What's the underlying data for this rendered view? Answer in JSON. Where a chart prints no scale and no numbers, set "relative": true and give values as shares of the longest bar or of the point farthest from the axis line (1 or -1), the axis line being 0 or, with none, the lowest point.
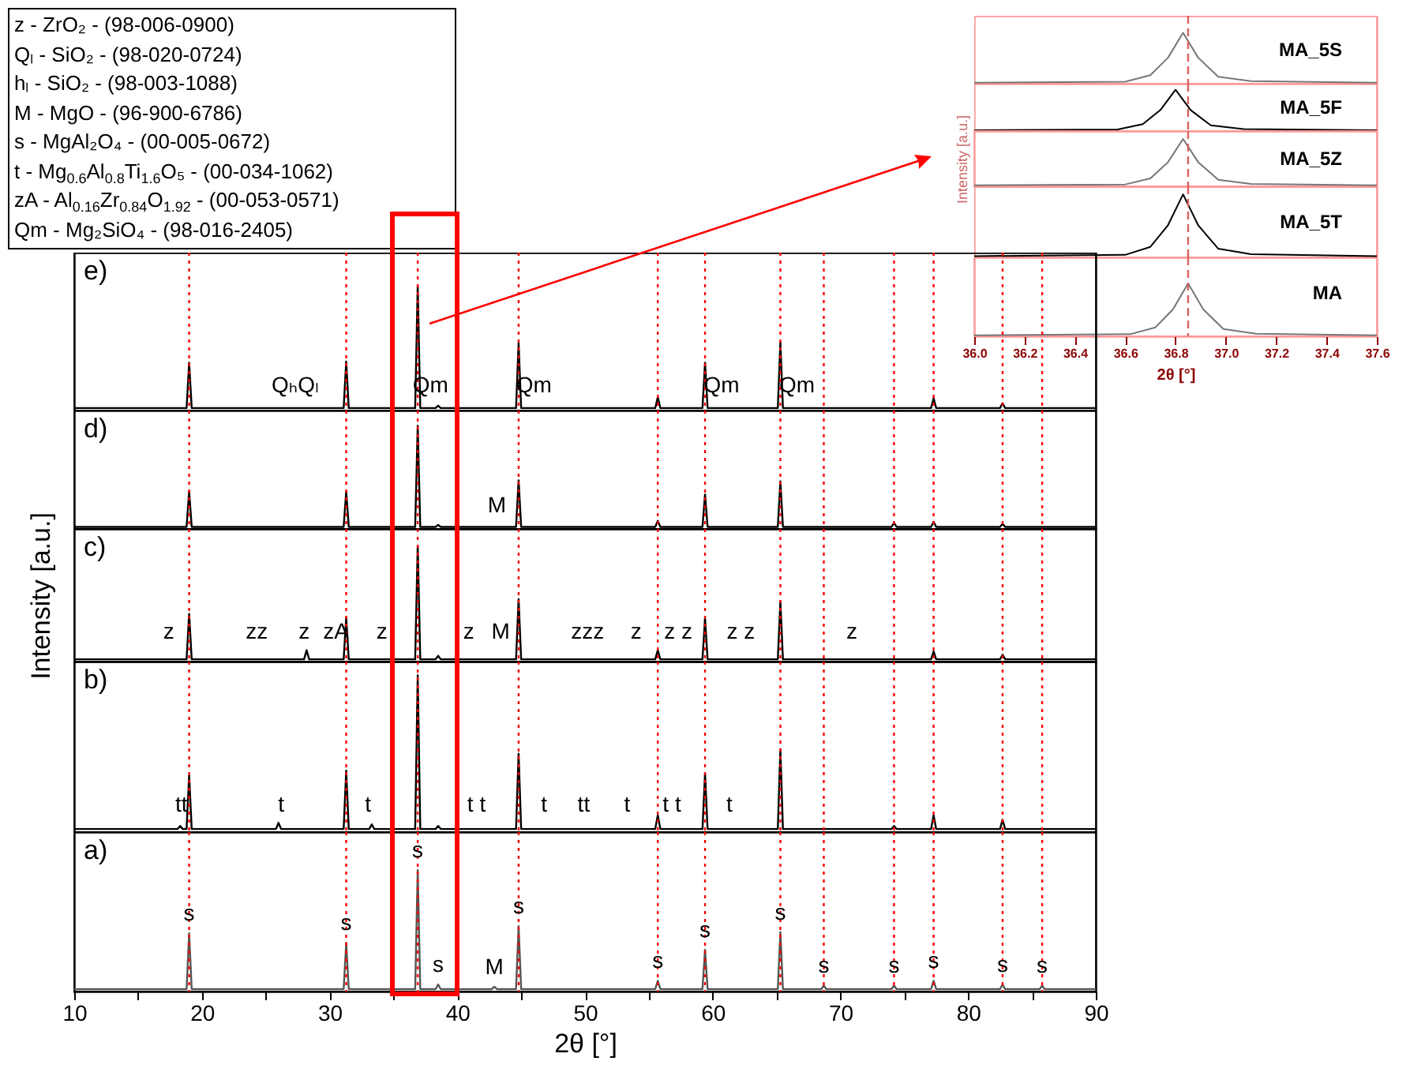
{
  "chart_data": [
    {
      "type": "other",
      "annotations": [
        "z - ZrO₂ - (98-006-0900)",
        "Qₗ - SiO₂ - (98-020-0724)",
        "hₗ - SiO₂ - (98-003-1088)",
        "M - MgO - (96-900-6786)",
        "s - MgAl₂O₄ - (00-005-0672)",
        "t - Mg$_{0.6}$Al$_{0.8}$Ti$_{1.6}$O₅ - (00-034-1062)",
        "zA - Al$_{0.16}$Zr$_{0.84}$O$_{1.92}$ - (00-053-0571)",
        "Qm - Mg₂SiO₄ - (98-016-2405)"
      ]
    },
    {
      "type": "line",
      "relative": true,
      "xlim": [
        36.0,
        37.6
      ],
      "tick_labels": false,
      "ref_lines": [
        {
          "axis": "x",
          "value": 36.85,
          "color": "#d96060",
          "line_style": "dashed"
        }
      ],
      "series": [
        {
          "name": "MA_5S",
          "color": "#777777",
          "x": [
            36.0,
            36.6,
            36.7,
            36.77,
            36.83,
            36.89,
            36.97,
            37.1,
            37.6
          ],
          "values": [
            0,
            0.02,
            0.15,
            0.5,
            1,
            0.5,
            0.12,
            0.03,
            0
          ]
        }
      ]
    },
    {
      "type": "line",
      "relative": true,
      "xlim": [
        36.0,
        37.6
      ],
      "tick_labels": false,
      "ref_lines": [
        {
          "axis": "x",
          "value": 36.85,
          "color": "#d96060",
          "line_style": "dashed"
        }
      ],
      "series": [
        {
          "name": "MA_5F",
          "color": "#000000",
          "x": [
            36.0,
            36.57,
            36.67,
            36.74,
            36.8,
            36.86,
            36.94,
            37.07,
            37.6
          ],
          "values": [
            0,
            0.02,
            0.15,
            0.5,
            1,
            0.5,
            0.12,
            0.03,
            0
          ]
        }
      ]
    },
    {
      "type": "line",
      "relative": true,
      "xlim": [
        36.0,
        37.6
      ],
      "tick_labels": false,
      "ylabel": "Intensity [a.u.]",
      "ref_lines": [
        {
          "axis": "x",
          "value": 36.85,
          "color": "#d96060",
          "line_style": "dashed"
        }
      ],
      "series": [
        {
          "name": "MA_5Z",
          "color": "#777777",
          "x": [
            36.0,
            36.6,
            36.7,
            36.77,
            36.83,
            36.89,
            36.97,
            37.1,
            37.6
          ],
          "values": [
            0,
            0.02,
            0.15,
            0.5,
            1,
            0.5,
            0.12,
            0.03,
            0
          ]
        }
      ]
    },
    {
      "type": "line",
      "relative": true,
      "xlim": [
        36.0,
        37.6
      ],
      "tick_labels": false,
      "ref_lines": [
        {
          "axis": "x",
          "value": 36.85,
          "color": "#d96060",
          "line_style": "dashed"
        }
      ],
      "series": [
        {
          "name": "MA_5T",
          "color": "#000000",
          "x": [
            36.0,
            36.6,
            36.7,
            36.77,
            36.83,
            36.89,
            36.97,
            37.1,
            37.6
          ],
          "values": [
            0,
            0.02,
            0.15,
            0.5,
            1,
            0.5,
            0.12,
            0.03,
            0
          ]
        }
      ]
    },
    {
      "type": "line",
      "relative": true,
      "xlim": [
        36.0,
        37.6
      ],
      "tick_labels": "x",
      "xlabel": "2θ [°]",
      "xticks": [
        {
          "value": 36.0,
          "label": "36.0"
        },
        {
          "value": 36.2,
          "label": "36.2"
        },
        {
          "value": 36.4,
          "label": "36.4"
        },
        {
          "value": 36.6,
          "label": "36.6"
        },
        {
          "value": 36.8,
          "label": "36.8"
        },
        {
          "value": 37.0,
          "label": "37.0"
        },
        {
          "value": 37.2,
          "label": "37.2"
        },
        {
          "value": 37.4,
          "label": "37.4"
        },
        {
          "value": 37.6,
          "label": "37.6"
        }
      ],
      "ref_lines": [
        {
          "axis": "x",
          "value": 36.85,
          "color": "#d96060",
          "line_style": "dashed"
        }
      ],
      "series": [
        {
          "name": "MA",
          "color": "#777777",
          "x": [
            36.0,
            36.62,
            36.72,
            36.79,
            36.85,
            36.91,
            36.99,
            37.12,
            37.6
          ],
          "values": [
            0,
            0.02,
            0.15,
            0.5,
            1,
            0.5,
            0.12,
            0.03,
            0
          ]
        }
      ]
    },
    {
      "type": "line",
      "relative": true,
      "xlim": [
        10,
        90
      ],
      "tick_labels": false,
      "annotations": [
        "e)",
        {
          "text": "QₕQₗ",
          "x": 27.3,
          "y": 0
        },
        {
          "text": "Qm",
          "x": 37.9,
          "y": 0
        },
        {
          "text": "Qm",
          "x": 46.0,
          "y": 0
        },
        {
          "text": "Qm",
          "x": 60.7,
          "y": 0
        },
        {
          "text": "Qm",
          "x": 66.6,
          "y": 0
        }
      ],
      "ref_lines": [
        {
          "axis": "x",
          "value": 19.0,
          "color": "#ff0000",
          "line_style": "dotted"
        },
        {
          "axis": "x",
          "value": 31.3,
          "color": "#ff0000",
          "line_style": "dotted"
        },
        {
          "axis": "x",
          "value": 36.9,
          "color": "#ff0000",
          "line_style": "dotted"
        },
        {
          "axis": "x",
          "value": 44.8,
          "color": "#ff0000",
          "line_style": "dotted"
        },
        {
          "axis": "x",
          "value": 55.7,
          "color": "#ff0000",
          "line_style": "dotted"
        },
        {
          "axis": "x",
          "value": 59.4,
          "color": "#ff0000",
          "line_style": "dotted"
        },
        {
          "axis": "x",
          "value": 65.3,
          "color": "#ff0000",
          "line_style": "dotted"
        },
        {
          "axis": "x",
          "value": 68.7,
          "color": "#ff0000",
          "line_style": "dotted"
        },
        {
          "axis": "x",
          "value": 74.2,
          "color": "#ff0000",
          "line_style": "dotted"
        },
        {
          "axis": "x",
          "value": 77.3,
          "color": "#ff0000",
          "line_style": "dotted"
        },
        {
          "axis": "x",
          "value": 82.7,
          "color": "#ff0000",
          "line_style": "dotted"
        },
        {
          "axis": "x",
          "value": 85.8,
          "color": "#ff0000",
          "line_style": "dotted"
        }
      ],
      "series": [
        {
          "color": "#000000",
          "x": [
            10,
            18.8,
            19.0,
            19.2,
            31.1,
            31.3,
            31.5,
            36.7,
            36.9,
            37.1,
            38.3,
            38.5,
            38.7,
            44.6,
            44.8,
            45.0,
            55.5,
            55.7,
            55.9,
            59.2,
            59.4,
            59.6,
            65.1,
            65.3,
            65.5,
            77.1,
            77.3,
            77.5,
            82.5,
            82.7,
            82.9,
            90
          ],
          "values": [
            0,
            0,
            0.37,
            0,
            0,
            0.38,
            0,
            0,
            1,
            0,
            0,
            0.02,
            0,
            0,
            0.53,
            0,
            0,
            0.09,
            0,
            0,
            0.37,
            0,
            0,
            0.54,
            0,
            0,
            0.08,
            0,
            0,
            0.04,
            0,
            0
          ]
        }
      ]
    },
    {
      "type": "line",
      "relative": true,
      "xlim": [
        10,
        90
      ],
      "tick_labels": false,
      "annotations": [
        "d)",
        {
          "text": "M",
          "x": 43.1,
          "y": 0
        }
      ],
      "ref_lines": [
        {
          "axis": "x",
          "value": 19.0,
          "color": "#ff0000",
          "line_style": "dotted"
        },
        {
          "axis": "x",
          "value": 31.3,
          "color": "#ff0000",
          "line_style": "dotted"
        },
        {
          "axis": "x",
          "value": 36.9,
          "color": "#ff0000",
          "line_style": "dotted"
        },
        {
          "axis": "x",
          "value": 44.8,
          "color": "#ff0000",
          "line_style": "dotted"
        },
        {
          "axis": "x",
          "value": 55.7,
          "color": "#ff0000",
          "line_style": "dotted"
        },
        {
          "axis": "x",
          "value": 59.4,
          "color": "#ff0000",
          "line_style": "dotted"
        },
        {
          "axis": "x",
          "value": 65.3,
          "color": "#ff0000",
          "line_style": "dotted"
        },
        {
          "axis": "x",
          "value": 68.7,
          "color": "#ff0000",
          "line_style": "dotted"
        },
        {
          "axis": "x",
          "value": 74.2,
          "color": "#ff0000",
          "line_style": "dotted"
        },
        {
          "axis": "x",
          "value": 77.3,
          "color": "#ff0000",
          "line_style": "dotted"
        },
        {
          "axis": "x",
          "value": 82.7,
          "color": "#ff0000",
          "line_style": "dotted"
        },
        {
          "axis": "x",
          "value": 85.8,
          "color": "#ff0000",
          "line_style": "dotted"
        }
      ],
      "series": [
        {
          "color": "#000000",
          "x": [
            10,
            18.8,
            19.0,
            19.2,
            31.1,
            31.3,
            31.5,
            36.7,
            36.9,
            37.1,
            38.3,
            38.5,
            38.7,
            44.6,
            44.8,
            45.0,
            55.5,
            55.7,
            55.9,
            59.2,
            59.4,
            59.6,
            65.1,
            65.3,
            65.5,
            74.0,
            74.2,
            74.4,
            77.1,
            77.3,
            77.5,
            82.5,
            82.7,
            82.9,
            90
          ],
          "values": [
            0,
            0,
            0.35,
            0,
            0,
            0.35,
            0,
            0,
            1,
            0,
            0,
            0.02,
            0,
            0,
            0.46,
            0,
            0,
            0.06,
            0,
            0,
            0.32,
            0,
            0,
            0.45,
            0,
            0,
            0.04,
            0,
            0,
            0.05,
            0,
            0,
            0.03,
            0,
            0
          ]
        }
      ]
    },
    {
      "type": "line",
      "relative": true,
      "xlim": [
        10,
        90
      ],
      "tick_labels": false,
      "ylabel": "Intensity [a.u.]",
      "annotations": [
        "c)",
        {
          "text": "z",
          "x": 17.4,
          "y": 0
        },
        {
          "text": "zz",
          "x": 24.3,
          "y": 0
        },
        {
          "text": "z",
          "x": 28.0,
          "y": 0
        },
        {
          "text": "zA",
          "x": 30.5,
          "y": 0
        },
        {
          "text": "z",
          "x": 34.1,
          "y": 0
        },
        {
          "text": "z",
          "x": 40.9,
          "y": 0
        },
        {
          "text": "M",
          "x": 43.4,
          "y": 0
        },
        {
          "text": "zzz",
          "x": 50.2,
          "y": 0
        },
        {
          "text": "z",
          "x": 54.0,
          "y": 0
        },
        {
          "text": "z z",
          "x": 57.3,
          "y": 0
        },
        {
          "text": "z z",
          "x": 62.2,
          "y": 0
        },
        {
          "text": "z",
          "x": 70.9,
          "y": 0
        }
      ],
      "ref_lines": [
        {
          "axis": "x",
          "value": 19.0,
          "color": "#ff0000",
          "line_style": "dotted"
        },
        {
          "axis": "x",
          "value": 31.3,
          "color": "#ff0000",
          "line_style": "dotted"
        },
        {
          "axis": "x",
          "value": 36.9,
          "color": "#ff0000",
          "line_style": "dotted"
        },
        {
          "axis": "x",
          "value": 44.8,
          "color": "#ff0000",
          "line_style": "dotted"
        },
        {
          "axis": "x",
          "value": 55.7,
          "color": "#ff0000",
          "line_style": "dotted"
        },
        {
          "axis": "x",
          "value": 59.4,
          "color": "#ff0000",
          "line_style": "dotted"
        },
        {
          "axis": "x",
          "value": 65.3,
          "color": "#ff0000",
          "line_style": "dotted"
        },
        {
          "axis": "x",
          "value": 68.7,
          "color": "#ff0000",
          "line_style": "dotted"
        },
        {
          "axis": "x",
          "value": 74.2,
          "color": "#ff0000",
          "line_style": "dotted"
        },
        {
          "axis": "x",
          "value": 77.3,
          "color": "#ff0000",
          "line_style": "dotted"
        },
        {
          "axis": "x",
          "value": 82.7,
          "color": "#ff0000",
          "line_style": "dotted"
        },
        {
          "axis": "x",
          "value": 85.8,
          "color": "#ff0000",
          "line_style": "dotted"
        }
      ],
      "series": [
        {
          "color": "#000000",
          "x": [
            10,
            18.8,
            19.0,
            19.2,
            28.0,
            28.2,
            28.4,
            31.1,
            31.3,
            31.5,
            36.7,
            36.9,
            37.1,
            38.3,
            38.5,
            38.7,
            44.6,
            44.8,
            45.0,
            55.5,
            55.7,
            55.9,
            59.2,
            59.4,
            59.6,
            65.1,
            65.3,
            65.5,
            77.1,
            77.3,
            77.5,
            82.5,
            82.7,
            82.9,
            90
          ],
          "values": [
            0,
            0,
            0.4,
            0,
            0,
            0.08,
            0,
            0,
            0.37,
            0,
            0,
            1,
            0,
            0,
            0.03,
            0,
            0,
            0.53,
            0,
            0,
            0.08,
            0,
            0,
            0.36,
            0,
            0,
            0.51,
            0,
            0,
            0.07,
            0,
            0,
            0.04,
            0,
            0
          ]
        }
      ]
    },
    {
      "type": "line",
      "relative": true,
      "xlim": [
        10,
        90
      ],
      "tick_labels": false,
      "annotations": [
        "b)",
        {
          "text": "tt",
          "x": 18.4,
          "y": 0
        },
        {
          "text": "t",
          "x": 26.2,
          "y": 0
        },
        {
          "text": "t",
          "x": 33.0,
          "y": 0
        },
        {
          "text": "t t",
          "x": 41.5,
          "y": 0
        },
        {
          "text": "t",
          "x": 46.8,
          "y": 0
        },
        {
          "text": "tt",
          "x": 49.9,
          "y": 0
        },
        {
          "text": "t",
          "x": 53.3,
          "y": 0
        },
        {
          "text": "t t",
          "x": 56.8,
          "y": 0
        },
        {
          "text": "t",
          "x": 61.3,
          "y": 0
        }
      ],
      "ref_lines": [
        {
          "axis": "x",
          "value": 19.0,
          "color": "#ff0000",
          "line_style": "dotted"
        },
        {
          "axis": "x",
          "value": 31.3,
          "color": "#ff0000",
          "line_style": "dotted"
        },
        {
          "axis": "x",
          "value": 36.9,
          "color": "#ff0000",
          "line_style": "dotted"
        },
        {
          "axis": "x",
          "value": 44.8,
          "color": "#ff0000",
          "line_style": "dotted"
        },
        {
          "axis": "x",
          "value": 55.7,
          "color": "#ff0000",
          "line_style": "dotted"
        },
        {
          "axis": "x",
          "value": 59.4,
          "color": "#ff0000",
          "line_style": "dotted"
        },
        {
          "axis": "x",
          "value": 65.3,
          "color": "#ff0000",
          "line_style": "dotted"
        },
        {
          "axis": "x",
          "value": 68.7,
          "color": "#ff0000",
          "line_style": "dotted"
        },
        {
          "axis": "x",
          "value": 74.2,
          "color": "#ff0000",
          "line_style": "dotted"
        },
        {
          "axis": "x",
          "value": 77.3,
          "color": "#ff0000",
          "line_style": "dotted"
        },
        {
          "axis": "x",
          "value": 82.7,
          "color": "#ff0000",
          "line_style": "dotted"
        },
        {
          "axis": "x",
          "value": 85.8,
          "color": "#ff0000",
          "line_style": "dotted"
        }
      ],
      "series": [
        {
          "color": "#000000",
          "x": [
            10,
            18.1,
            18.3,
            18.5,
            18.8,
            19.0,
            19.2,
            25.8,
            26.0,
            26.2,
            31.1,
            31.3,
            31.5,
            33.1,
            33.3,
            33.5,
            36.7,
            36.9,
            37.1,
            38.3,
            38.5,
            38.7,
            44.6,
            44.8,
            45.0,
            55.5,
            55.7,
            55.9,
            59.2,
            59.4,
            59.6,
            65.1,
            65.3,
            65.5,
            74.0,
            74.2,
            74.4,
            77.1,
            77.3,
            77.5,
            82.5,
            82.7,
            82.9,
            90
          ],
          "values": [
            0,
            0,
            0.02,
            0,
            0,
            0.35,
            0,
            0,
            0.04,
            0,
            0,
            0.38,
            0,
            0,
            0.03,
            0,
            0,
            1,
            0,
            0,
            0.02,
            0,
            0,
            0.49,
            0,
            0,
            0.09,
            0,
            0,
            0.36,
            0,
            0,
            0.52,
            0,
            0,
            0.02,
            0,
            0,
            0.09,
            0,
            0,
            0.06,
            0,
            0
          ]
        }
      ]
    },
    {
      "type": "line",
      "relative": true,
      "xlim": [
        10,
        90
      ],
      "tick_labels": "x",
      "xlabel": "2θ [°]",
      "xticks": [
        10,
        {
          "value": 15,
          "label": null
        },
        20,
        {
          "value": 25,
          "label": null
        },
        30,
        {
          "value": 35,
          "label": null
        },
        40,
        {
          "value": 45,
          "label": null
        },
        50,
        {
          "value": 55,
          "label": null
        },
        60,
        {
          "value": 65,
          "label": null
        },
        70,
        {
          "value": 75,
          "label": null
        },
        80,
        {
          "value": 85,
          "label": null
        },
        90
      ],
      "annotations": [
        "a)",
        {
          "text": "s",
          "x": 19.0,
          "y": 0.47
        },
        {
          "text": "s",
          "x": 31.3,
          "y": 0.39
        },
        {
          "text": "s",
          "x": 36.9,
          "y": 1
        },
        {
          "text": "s",
          "x": 38.5,
          "y": 0.04
        },
        {
          "text": "M",
          "x": 42.9,
          "y": 0.02
        },
        {
          "text": "s",
          "x": 44.8,
          "y": 0.53
        },
        {
          "text": "s",
          "x": 55.7,
          "y": 0.07
        },
        {
          "text": "s",
          "x": 59.4,
          "y": 0.33
        },
        {
          "text": "s",
          "x": 65.3,
          "y": 0.48
        },
        {
          "text": "s",
          "x": 68.7,
          "y": 0.03
        },
        {
          "text": "s",
          "x": 74.2,
          "y": 0.03
        },
        {
          "text": "s",
          "x": 77.3,
          "y": 0.07
        },
        {
          "text": "s",
          "x": 82.7,
          "y": 0.04
        },
        {
          "text": "s",
          "x": 85.8,
          "y": 0.03
        }
      ],
      "ref_lines": [
        {
          "axis": "x",
          "value": 19.0,
          "color": "#ff0000",
          "line_style": "dotted"
        },
        {
          "axis": "x",
          "value": 31.3,
          "color": "#ff0000",
          "line_style": "dotted"
        },
        {
          "axis": "x",
          "value": 36.9,
          "color": "#ff0000",
          "line_style": "dotted"
        },
        {
          "axis": "x",
          "value": 44.8,
          "color": "#ff0000",
          "line_style": "dotted"
        },
        {
          "axis": "x",
          "value": 55.7,
          "color": "#ff0000",
          "line_style": "dotted"
        },
        {
          "axis": "x",
          "value": 59.4,
          "color": "#ff0000",
          "line_style": "dotted"
        },
        {
          "axis": "x",
          "value": 65.3,
          "color": "#ff0000",
          "line_style": "dotted"
        },
        {
          "axis": "x",
          "value": 68.7,
          "color": "#ff0000",
          "line_style": "dotted"
        },
        {
          "axis": "x",
          "value": 74.2,
          "color": "#ff0000",
          "line_style": "dotted"
        },
        {
          "axis": "x",
          "value": 77.3,
          "color": "#ff0000",
          "line_style": "dotted"
        },
        {
          "axis": "x",
          "value": 82.7,
          "color": "#ff0000",
          "line_style": "dotted"
        },
        {
          "axis": "x",
          "value": 85.8,
          "color": "#ff0000",
          "line_style": "dotted"
        }
      ],
      "series": [
        {
          "color": "#555555",
          "x": [
            10,
            18.8,
            19.0,
            19.2,
            31.1,
            31.3,
            31.5,
            36.7,
            36.9,
            37.1,
            38.3,
            38.5,
            38.7,
            42.7,
            42.9,
            43.1,
            44.6,
            44.8,
            45.0,
            55.5,
            55.7,
            55.9,
            59.2,
            59.4,
            59.6,
            65.1,
            65.3,
            65.5,
            68.5,
            68.7,
            68.9,
            74.0,
            74.2,
            74.4,
            77.1,
            77.3,
            77.5,
            82.5,
            82.7,
            82.9,
            85.6,
            85.8,
            86.0,
            90
          ],
          "values": [
            0,
            0,
            0.47,
            0,
            0,
            0.39,
            0,
            0,
            1,
            0,
            0,
            0.04,
            0,
            0,
            0.02,
            0,
            0,
            0.53,
            0,
            0,
            0.07,
            0,
            0,
            0.33,
            0,
            0,
            0.48,
            0,
            0,
            0.03,
            0,
            0,
            0.03,
            0,
            0,
            0.07,
            0,
            0,
            0.04,
            0,
            0,
            0.03,
            0,
            0
          ]
        }
      ]
    }
  ]
}
